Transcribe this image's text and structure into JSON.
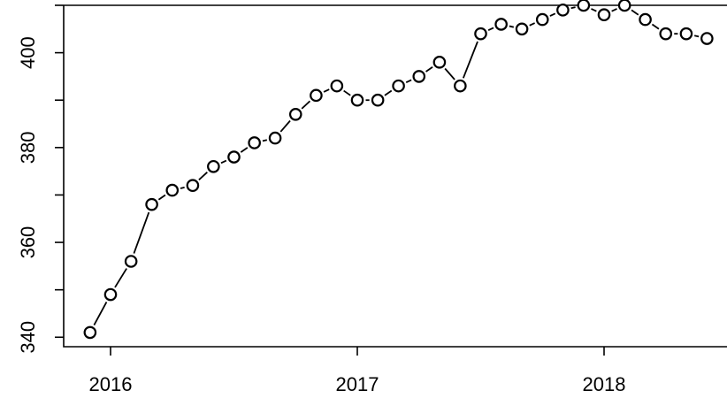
{
  "chart_data": {
    "type": "line",
    "style": "b",
    "title": "",
    "xlabel": "",
    "ylabel": "",
    "xlim": [
      2015.89,
      2018.52
    ],
    "ylim": [
      338,
      410
    ],
    "grid": false,
    "legend": "none",
    "x_ticks": [
      {
        "value": 2016,
        "label": "2016"
      },
      {
        "value": 2017,
        "label": "2017"
      },
      {
        "value": 2018,
        "label": "2018"
      }
    ],
    "y_ticks": [
      {
        "value": 340,
        "label": "340"
      },
      {
        "value": 350,
        "label": ""
      },
      {
        "value": 360,
        "label": "360"
      },
      {
        "value": 370,
        "label": ""
      },
      {
        "value": 380,
        "label": "380"
      },
      {
        "value": 390,
        "label": ""
      },
      {
        "value": 400,
        "label": "400"
      },
      {
        "value": 410,
        "label": ""
      }
    ],
    "series": [
      {
        "x": [
          2015.917,
          2016.0,
          2016.083,
          2016.167,
          2016.25,
          2016.333,
          2016.417,
          2016.5,
          2016.583,
          2016.667,
          2016.75,
          2016.833,
          2016.917,
          2017.0,
          2017.083,
          2017.167,
          2017.25,
          2017.333,
          2017.417,
          2017.5,
          2017.583,
          2017.667,
          2017.75,
          2017.833,
          2017.917,
          2018.0,
          2018.083,
          2018.167,
          2018.25,
          2018.333,
          2018.417
        ],
        "y": [
          341,
          349,
          356,
          368,
          371,
          372,
          376,
          378,
          381,
          382,
          387,
          391,
          393,
          390,
          390,
          393,
          395,
          398,
          393,
          404,
          406,
          405,
          407,
          409,
          410,
          408,
          410,
          407,
          404,
          404,
          403
        ]
      }
    ]
  }
}
